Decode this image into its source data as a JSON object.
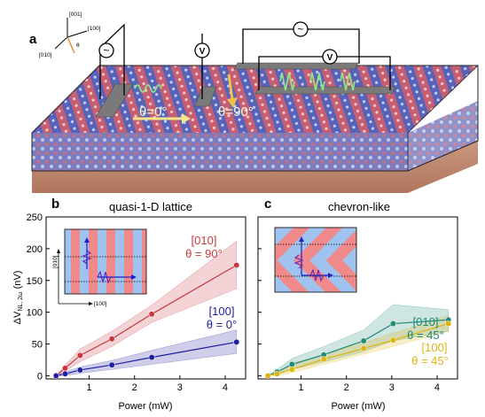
{
  "panel_a": {
    "letter": "a",
    "axes": {
      "z": "[001]",
      "x": "[100]",
      "y": "[010]",
      "angle": "θ"
    },
    "source1": "~",
    "voltmeter1": "V",
    "source2": "~",
    "voltmeter2": "V",
    "theta0": "θ=0°",
    "theta90": "θ=90°"
  },
  "colors": {
    "red": "#c8383f",
    "blue": "#1f1fa0",
    "teal": "#1f8a78",
    "yellow": "#e0b40f"
  },
  "chart_data": [
    {
      "type": "line",
      "panel": "b",
      "title": "quasi-1-D lattice",
      "xlabel": "Power (mW)",
      "ylabel": "ΔV",
      "ylabel_sub": "NL, 2ω",
      "ylabel_unit": " (nV)",
      "xlim": [
        0.05,
        4.45
      ],
      "ylim": [
        -5,
        250
      ],
      "xticks": [
        1,
        2,
        3,
        4
      ],
      "yticks": [
        0,
        50,
        100,
        150,
        200,
        250
      ],
      "inset": {
        "y_axis": "[010]",
        "x_axis": "[100]"
      },
      "series": [
        {
          "name": "[010]",
          "label2": "θ = 90°",
          "color": "#c8383f",
          "x": [
            0.27,
            0.47,
            0.8,
            1.5,
            2.38,
            4.25
          ],
          "y": [
            0,
            12,
            32,
            58,
            97,
            174
          ],
          "band": [
            [
              0,
              0
            ],
            [
              7,
              17
            ],
            [
              22,
              42
            ],
            [
              46,
              70
            ],
            [
              84,
              111
            ],
            [
              137,
              212
            ]
          ]
        },
        {
          "name": "[100]",
          "label2": "θ = 0°",
          "color": "#1f1fa0",
          "x": [
            0.27,
            0.47,
            0.8,
            1.5,
            2.38,
            4.25
          ],
          "y": [
            0,
            3,
            9,
            17,
            29,
            53
          ],
          "band": [
            [
              0,
              0
            ],
            [
              0,
              6
            ],
            [
              4,
              14
            ],
            [
              10,
              24
            ],
            [
              18,
              40
            ],
            [
              35,
              72
            ]
          ]
        }
      ]
    },
    {
      "type": "line",
      "panel": "c",
      "title": "chevron-like",
      "xlabel": "Power (mW)",
      "xlim": [
        0.05,
        4.45
      ],
      "ylim": [
        -5,
        250
      ],
      "xticks": [
        1,
        2,
        3,
        4
      ],
      "series": [
        {
          "name": "[010]",
          "label2": "θ = 45°",
          "color": "#1f8a78",
          "x": [
            0.27,
            0.47,
            0.8,
            1.5,
            2.38,
            3.03,
            4.25
          ],
          "y": [
            0,
            6,
            18,
            33,
            55,
            82,
            88
          ],
          "band": [
            [
              0,
              0
            ],
            [
              2,
              10
            ],
            [
              10,
              27
            ],
            [
              22,
              46
            ],
            [
              38,
              72
            ],
            [
              55,
              112
            ],
            [
              70,
              104
            ]
          ]
        },
        {
          "name": "[100]",
          "label2": "θ = 45°",
          "color": "#e0b40f",
          "x": [
            0.27,
            0.47,
            0.8,
            1.5,
            2.38,
            3.03,
            4.25
          ],
          "y": [
            0,
            3,
            10,
            26,
            43,
            56,
            82
          ],
          "band": [
            [
              0,
              0
            ],
            [
              0,
              6
            ],
            [
              5,
              16
            ],
            [
              18,
              34
            ],
            [
              34,
              52
            ],
            [
              46,
              67
            ],
            [
              70,
              95
            ]
          ]
        }
      ]
    }
  ]
}
